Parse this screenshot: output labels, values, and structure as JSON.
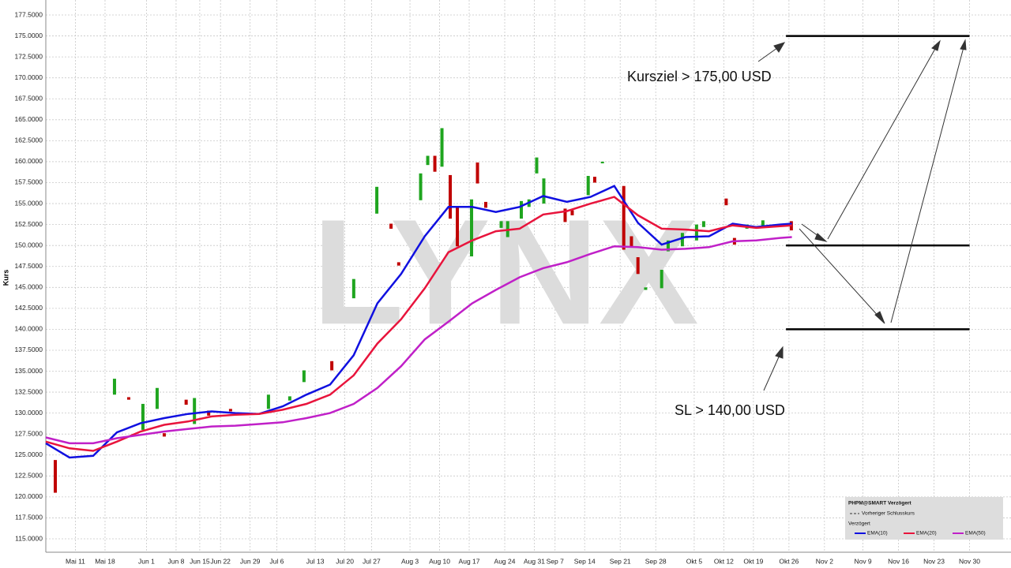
{
  "chart_data": {
    "type": "ohlc-ema",
    "y_label": "Kurs",
    "watermark": "LYNX",
    "xlim": [
      0,
      163
    ],
    "ylim": [
      113.4,
      179.29
    ],
    "grid": true,
    "xticks": [
      {
        "value": 5,
        "label": "Mai 11"
      },
      {
        "value": 10,
        "label": "Mai 18"
      },
      {
        "value": 17,
        "label": "Jun 1"
      },
      {
        "value": 22,
        "label": "Jun 8"
      },
      {
        "value": 26,
        "label": "Jun 15"
      },
      {
        "value": 29.5,
        "label": "Jun 22"
      },
      {
        "value": 34.5,
        "label": "Jun 29"
      },
      {
        "value": 39,
        "label": "Jul 6"
      },
      {
        "value": 45.5,
        "label": "Jul 13"
      },
      {
        "value": 50.5,
        "label": "Jul 20"
      },
      {
        "value": 55,
        "label": "Jul 27"
      },
      {
        "value": 61.5,
        "label": "Aug 3"
      },
      {
        "value": 66.5,
        "label": "Aug 10"
      },
      {
        "value": 71.5,
        "label": "Aug 17"
      },
      {
        "value": 77.5,
        "label": "Aug 24"
      },
      {
        "value": 82.5,
        "label": "Aug 31"
      },
      {
        "value": 86,
        "label": "Sep 7"
      },
      {
        "value": 91,
        "label": "Sep 14"
      },
      {
        "value": 97,
        "label": "Sep 21"
      },
      {
        "value": 103,
        "label": "Sep 28"
      },
      {
        "value": 109.5,
        "label": "Okt 5"
      },
      {
        "value": 114.5,
        "label": "Okt 12"
      },
      {
        "value": 119.5,
        "label": "Okt 19"
      },
      {
        "value": 125.5,
        "label": "Okt 26"
      },
      {
        "value": 131.5,
        "label": "Nov 2"
      },
      {
        "value": 138,
        "label": "Nov 9"
      },
      {
        "value": 144,
        "label": "Nov 16"
      },
      {
        "value": 150,
        "label": "Nov 23"
      },
      {
        "value": 156,
        "label": "Nov 30"
      }
    ],
    "yticks": [
      {
        "value": 115,
        "label": "115.0000"
      },
      {
        "value": 117.5,
        "label": "117.5000"
      },
      {
        "value": 120,
        "label": "120.0000"
      },
      {
        "value": 122.5,
        "label": "122.5000"
      },
      {
        "value": 125,
        "label": "125.0000"
      },
      {
        "value": 127.5,
        "label": "127.5000"
      },
      {
        "value": 130,
        "label": "130.0000"
      },
      {
        "value": 132.5,
        "label": "132.5000"
      },
      {
        "value": 135,
        "label": "135.0000"
      },
      {
        "value": 137.5,
        "label": "137.5000"
      },
      {
        "value": 140,
        "label": "140.0000"
      },
      {
        "value": 142.5,
        "label": "142.5000"
      },
      {
        "value": 145,
        "label": "145.0000"
      },
      {
        "value": 147.5,
        "label": "147.5000"
      },
      {
        "value": 150,
        "label": "150.0000"
      },
      {
        "value": 152.5,
        "label": "152.5000"
      },
      {
        "value": 155,
        "label": "155.0000"
      },
      {
        "value": 157.5,
        "label": "157.5000"
      },
      {
        "value": 160,
        "label": "160.0000"
      },
      {
        "value": 162.5,
        "label": "162.5000"
      },
      {
        "value": 165,
        "label": "165.0000"
      },
      {
        "value": 167.5,
        "label": "167.5000"
      },
      {
        "value": 170,
        "label": "170.0000"
      },
      {
        "value": 172.5,
        "label": "172.5000"
      },
      {
        "value": 175,
        "label": "175.0000"
      },
      {
        "value": 177.5,
        "label": "177.5000"
      }
    ],
    "bars": {
      "up_color": "#1fa51f",
      "down_color": "#c00000",
      "x": [
        1.6,
        11.6,
        14.0,
        16.4,
        18.8,
        20,
        23.7,
        25.1,
        27.5,
        31.2,
        37.6,
        41.2,
        43.6,
        48.3,
        52,
        55.9,
        58.3,
        59.6,
        63.3,
        64.5,
        65.7,
        66.9,
        68.3,
        69.5,
        71.9,
        72.9,
        74.3,
        76.9,
        78,
        80.3,
        81.6,
        82.9,
        84.1,
        87.7,
        88.9,
        91.6,
        92.7,
        94,
        97.6,
        98.9,
        100,
        101.3,
        104,
        105.1,
        107.5,
        109.9,
        111.1,
        114.9,
        116.3,
        118.4,
        121.1,
        125.9
      ],
      "open": [
        124.4,
        132.2,
        131.9,
        128.0,
        130.5,
        127.6,
        131.6,
        128.7,
        130.3,
        130.5,
        130.5,
        131.5,
        133.7,
        136.2,
        143.7,
        153.8,
        152.6,
        148.0,
        155.4,
        159.6,
        160.7,
        159.4,
        158.4,
        154.6,
        148.7,
        159.9,
        155.2,
        152.1,
        151.0,
        153.2,
        154.6,
        158.6,
        155.0,
        154.4,
        154.2,
        156.0,
        158.2,
        159.8,
        157.1,
        151.1,
        148.6,
        144.7,
        144.9,
        149.3,
        149.9,
        150.6,
        152.2,
        155.6,
        150.9,
        152.0,
        152.3,
        152.9
      ],
      "close": [
        120.5,
        134.1,
        131.6,
        131.1,
        133.0,
        127.2,
        131.0,
        131.8,
        129.7,
        130.2,
        132.2,
        132.0,
        135.1,
        135.1,
        146.0,
        157.0,
        152.0,
        147.6,
        158.6,
        160.7,
        158.8,
        164.0,
        153.2,
        149.9,
        155.5,
        157.4,
        154.5,
        152.9,
        152.9,
        155.3,
        155.5,
        160.5,
        158.0,
        152.8,
        153.6,
        158.3,
        157.5,
        160.0,
        149.5,
        149.8,
        146.6,
        145.0,
        147.1,
        150.6,
        151.5,
        152.5,
        152.9,
        154.8,
        150.1,
        152.5,
        153.0,
        151.8
      ]
    },
    "x": [
      0,
      4,
      8,
      12,
      16,
      20,
      24,
      28,
      32,
      36,
      40,
      44,
      48,
      52,
      56,
      60,
      64,
      68,
      72,
      76,
      80,
      84,
      88,
      92,
      96,
      100,
      104,
      108,
      112,
      116,
      120,
      124,
      126
    ],
    "series": [
      {
        "name": "EMA(10)",
        "color": "#1010e0",
        "values": [
          126.4,
          124.7,
          124.9,
          127.7,
          128.8,
          129.4,
          129.9,
          130.2,
          130.0,
          129.9,
          130.8,
          132.2,
          133.4,
          136.9,
          143.1,
          146.6,
          151.1,
          154.6,
          154.6,
          154.0,
          154.6,
          155.9,
          155.2,
          155.8,
          157.1,
          152.7,
          150.1,
          151.0,
          151.1,
          152.6,
          152.2,
          152.5,
          152.6
        ]
      },
      {
        "name": "EMA(20)",
        "color": "#e8143c",
        "values": [
          126.6,
          125.8,
          125.5,
          126.6,
          127.8,
          128.6,
          129.0,
          129.6,
          129.8,
          129.9,
          130.4,
          131.1,
          132.2,
          134.5,
          138.3,
          141.2,
          144.9,
          149.2,
          150.6,
          151.7,
          152.0,
          153.7,
          154.1,
          155.0,
          155.8,
          153.6,
          152.0,
          151.9,
          151.7,
          152.4,
          152.1,
          152.3,
          152.4
        ]
      },
      {
        "name": "EMA(50)",
        "color": "#c020c8",
        "values": [
          127.1,
          126.4,
          126.4,
          127.0,
          127.4,
          127.8,
          128.1,
          128.4,
          128.5,
          128.7,
          128.9,
          129.4,
          130.0,
          131.1,
          133.0,
          135.6,
          138.8,
          140.9,
          143.1,
          144.7,
          146.2,
          147.3,
          148.0,
          149.0,
          149.9,
          149.8,
          149.5,
          149.6,
          149.8,
          150.5,
          150.6,
          150.9,
          151.0
        ]
      }
    ],
    "levels": [
      {
        "value": 175,
        "x_start": 125,
        "x_end": 156
      },
      {
        "value": 150,
        "x_start": 125,
        "x_end": 156
      },
      {
        "value": 140,
        "x_start": 125,
        "x_end": 156
      }
    ],
    "annotations": [
      "Kursziel > 175,00 USD",
      "SL > 140,00 USD"
    ],
    "legend": {
      "title": "PHPM@SMART Verzögert",
      "prev_close": "Vorheriger Schlusskurs",
      "delayed": "Verzögert"
    }
  }
}
